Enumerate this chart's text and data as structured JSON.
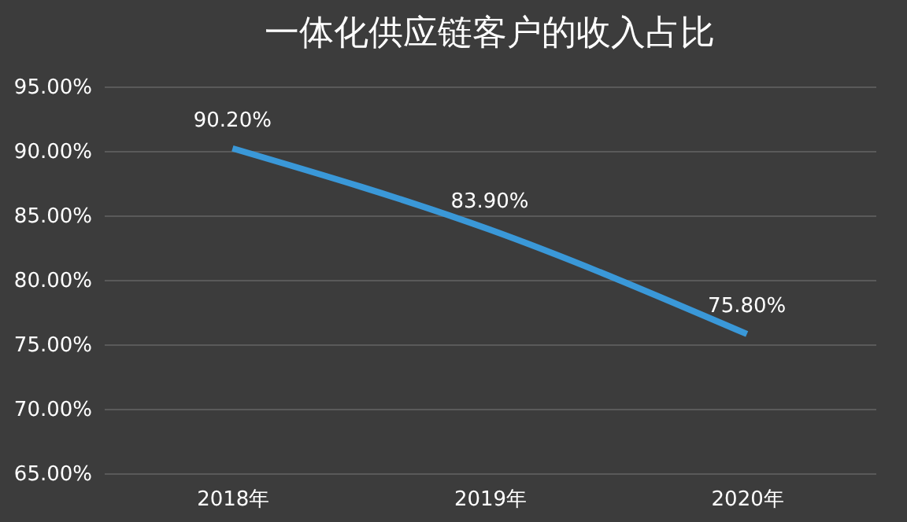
{
  "chart_data": {
    "type": "line",
    "title": "一体化供应链客户的收入占比",
    "categories": [
      "2018年",
      "2019年",
      "2020年"
    ],
    "series": [
      {
        "color": "#3a98d8",
        "values": [
          90.2,
          83.9,
          75.8
        ],
        "value_labels": [
          "90.20%",
          "83.90%",
          "75.80%"
        ]
      }
    ],
    "ylim": [
      65,
      95
    ],
    "yticks": [
      {
        "value": 65,
        "label": "65.00%"
      },
      {
        "value": 70,
        "label": "70.00%"
      },
      {
        "value": 75,
        "label": "75.00%"
      },
      {
        "value": 80,
        "label": "80.00%"
      },
      {
        "value": 85,
        "label": "85.00%"
      },
      {
        "value": 90,
        "label": "90.00%"
      },
      {
        "value": 95,
        "label": "95.00%"
      }
    ],
    "grid": "y",
    "marker": "none",
    "line_style": "solid"
  }
}
